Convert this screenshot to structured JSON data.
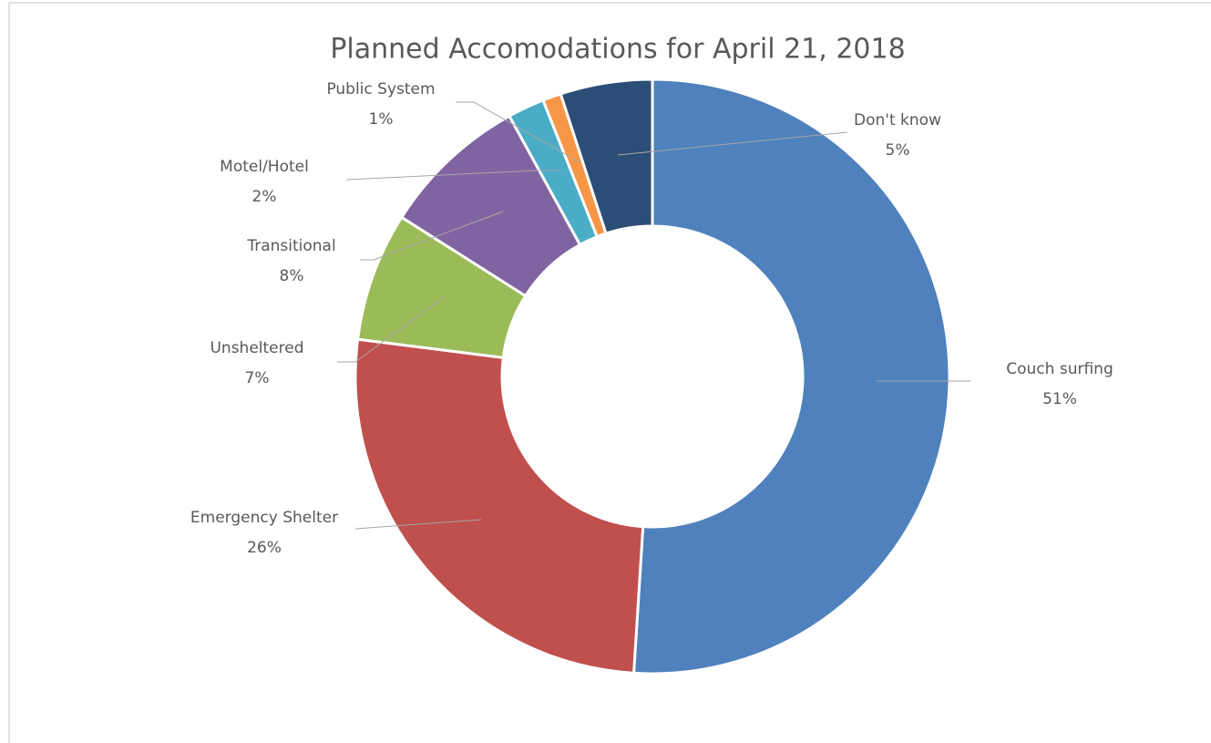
{
  "chart_data": {
    "type": "donut",
    "title": "Planned Accomodations for April 21, 2018",
    "categories": [
      "Couch surfing",
      "Emergency Shelter",
      "Unsheltered",
      "Transitional",
      "Motel/Hotel",
      "Public System",
      "Don't know"
    ],
    "values": [
      51,
      26,
      7,
      8,
      2,
      1,
      5
    ],
    "value_labels": [
      "51%",
      "26%",
      "7%",
      "8%",
      "2%",
      "1%",
      "5%"
    ],
    "colors": [
      "#4f81bd",
      "#c0504d",
      "#9bbb59",
      "#8064a2",
      "#4bacc6",
      "#f79646",
      "#2c4d75"
    ]
  }
}
